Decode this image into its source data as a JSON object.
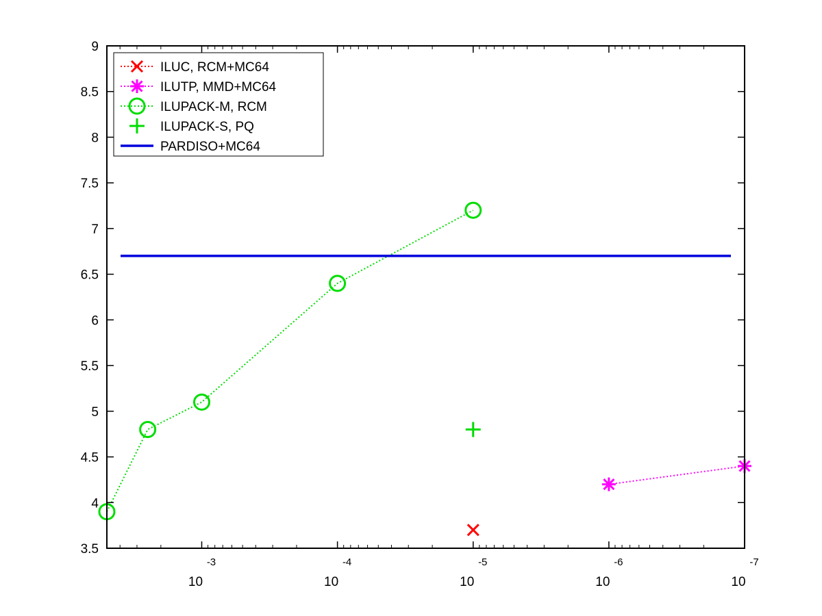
{
  "chart_data": {
    "type": "line",
    "title": "",
    "xlabel": "",
    "ylabel": "",
    "xscale": "log",
    "x_reversed": true,
    "xlim": [
      0.005,
      1e-07
    ],
    "ylim": [
      3.5,
      9
    ],
    "grid": false,
    "legend_position": "top-left",
    "y_ticks": [
      "3.5",
      "4",
      "4.5",
      "5",
      "5.5",
      "6",
      "6.5",
      "7",
      "7.5",
      "8",
      "8.5",
      "9"
    ],
    "x_ticks": [
      {
        "value": 0.001,
        "base": "10",
        "exp": "-3"
      },
      {
        "value": 0.0001,
        "base": "10",
        "exp": "-4"
      },
      {
        "value": 1e-05,
        "base": "10",
        "exp": "-5"
      },
      {
        "value": 1e-06,
        "base": "10",
        "exp": "-6"
      },
      {
        "value": 1e-07,
        "base": "10",
        "exp": "-7"
      }
    ],
    "series": [
      {
        "name": "ILUC, RCM+MC64",
        "color": "#ff0000",
        "marker": "x",
        "line": "dotted",
        "points": [
          {
            "x": 1e-05,
            "y": 3.7
          }
        ]
      },
      {
        "name": "ILUTP, MMD+MC64",
        "color": "#ff00ff",
        "marker": "asterisk",
        "line": "dotted",
        "points": [
          {
            "x": 1e-06,
            "y": 4.2
          },
          {
            "x": 1e-07,
            "y": 4.4
          }
        ]
      },
      {
        "name": "ILUPACK-M, RCM",
        "color": "#00dd00",
        "marker": "circle",
        "line": "dotted",
        "points": [
          {
            "x": 0.005,
            "y": 3.9
          },
          {
            "x": 0.0025,
            "y": 4.8
          },
          {
            "x": 0.001,
            "y": 5.1
          },
          {
            "x": 0.0001,
            "y": 6.4
          },
          {
            "x": 1e-05,
            "y": 7.2
          }
        ]
      },
      {
        "name": "ILUPACK-S, PQ",
        "color": "#00dd00",
        "marker": "plus",
        "line": "none",
        "points": [
          {
            "x": 1e-05,
            "y": 4.8
          }
        ]
      },
      {
        "name": "PARDISO+MC64",
        "color": "#0000dd",
        "marker": "none",
        "line": "solid",
        "points": [
          {
            "x": 0.005,
            "y": 6.7
          },
          {
            "x": 1e-07,
            "y": 6.7
          }
        ]
      }
    ]
  }
}
